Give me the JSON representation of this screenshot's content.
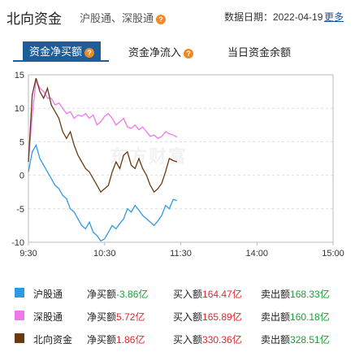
{
  "header": {
    "title": "北向资金",
    "subtitle": "沪股通、深股通",
    "date_label": "数据日期：2022-04-19",
    "more_label": "更多"
  },
  "tabs": [
    {
      "label": "资金净买额",
      "active": true
    },
    {
      "label": "资金净流入",
      "active": false
    },
    {
      "label": "当日资金余额",
      "active": false
    }
  ],
  "watermark": "东方财富",
  "colors": {
    "hgt": "#2f9ae6",
    "sgt": "#ee77ee",
    "north": "#6b3a12",
    "accent": "#1c5d9a",
    "positive": "#e3262d",
    "negative": "#16a13a"
  },
  "legend": [
    {
      "name": "沪股通",
      "net_prefix": "净买额",
      "net_value": "-3.86亿",
      "net_sign": "negative",
      "buy_prefix": "买入额",
      "buy_value": "164.47亿",
      "sell_prefix": "卖出额",
      "sell_value": "168.33亿"
    },
    {
      "name": "深股通",
      "net_prefix": "净买额",
      "net_value": "5.72亿",
      "net_sign": "positive",
      "buy_prefix": "买入额",
      "buy_value": "165.89亿",
      "sell_prefix": "卖出额",
      "sell_value": "160.18亿"
    },
    {
      "name": "北向资金",
      "net_prefix": "净买额",
      "net_value": "1.86亿",
      "net_sign": "positive",
      "buy_prefix": "买入额",
      "buy_value": "330.36亿",
      "sell_prefix": "卖出额",
      "sell_value": "328.51亿"
    }
  ],
  "chart_data": {
    "type": "line",
    "xlabel": "",
    "ylabel": "",
    "x_tick_labels": [
      "9:30",
      "10:30",
      "11:30",
      "14:00",
      "15:00"
    ],
    "x_range_minutes": [
      0,
      240
    ],
    "ylim": [
      -10,
      15
    ],
    "y_ticks": [
      15,
      10,
      5,
      0,
      -5,
      -10
    ],
    "grid": "horizontal dashed",
    "x": [
      0,
      3,
      6,
      9,
      12,
      15,
      18,
      21,
      24,
      27,
      30,
      33,
      36,
      39,
      42,
      45,
      48,
      51,
      54,
      57,
      60,
      63,
      66,
      69,
      72,
      75,
      78,
      81,
      84,
      87,
      90,
      93,
      96,
      99,
      102,
      105,
      108,
      111,
      114,
      117
    ],
    "series": [
      {
        "name": "沪股通",
        "color": "#2f9ae6",
        "values": [
          0.5,
          3.5,
          4.5,
          2.5,
          1.5,
          0.5,
          -0.5,
          -1.5,
          -2.0,
          -3.0,
          -3.5,
          -5.0,
          -5.5,
          -6.5,
          -7.5,
          -8.0,
          -7.0,
          -8.5,
          -9.0,
          -9.8,
          -9.5,
          -8.5,
          -7.5,
          -8.0,
          -7.2,
          -6.5,
          -5.0,
          -5.5,
          -4.5,
          -5.2,
          -6.0,
          -6.5,
          -7.0,
          -7.5,
          -6.8,
          -6.0,
          -4.5,
          -5.0,
          -3.6,
          -3.8
        ]
      },
      {
        "name": "深股通",
        "color": "#ee77ee",
        "values": [
          2.0,
          9.0,
          14.2,
          13.0,
          12.5,
          11.5,
          11.5,
          10.5,
          10.8,
          10.0,
          9.2,
          9.5,
          8.5,
          9.0,
          8.8,
          9.2,
          8.5,
          9.0,
          7.5,
          8.0,
          8.8,
          9.2,
          8.5,
          7.5,
          8.0,
          8.5,
          7.2,
          7.0,
          7.5,
          6.8,
          7.2,
          6.5,
          5.8,
          6.0,
          5.5,
          5.8,
          6.5,
          6.2,
          6.0,
          5.7
        ]
      },
      {
        "name": "北向资金",
        "color": "#6b3a12",
        "values": [
          2.0,
          12.0,
          14.5,
          12.5,
          11.5,
          13.0,
          10.5,
          9.5,
          8.5,
          6.5,
          5.5,
          6.5,
          4.5,
          3.0,
          2.0,
          1.0,
          0.5,
          -0.5,
          -1.5,
          -2.5,
          -2.0,
          -1.5,
          0.5,
          2.0,
          1.0,
          3.0,
          3.5,
          1.5,
          1.0,
          2.5,
          1.0,
          0.0,
          -1.5,
          -2.5,
          -2.0,
          -1.2,
          0.5,
          2.5,
          2.2,
          2.0
        ]
      }
    ]
  }
}
